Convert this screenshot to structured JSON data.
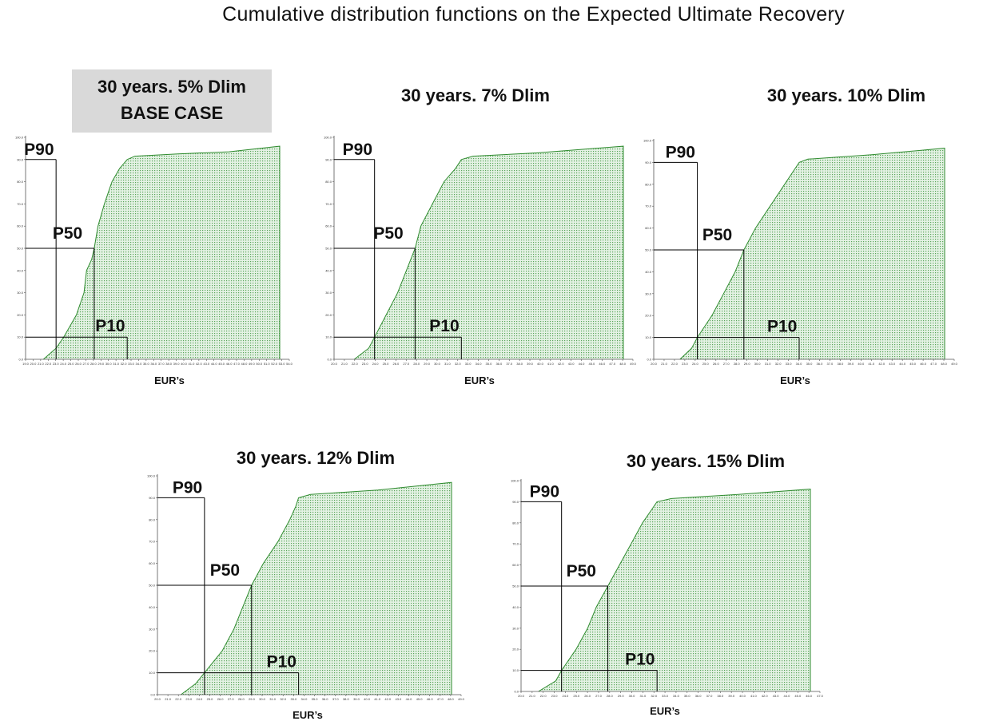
{
  "title": "Cumulative distribution functions on the Expected Ultimate Recovery",
  "colors": {
    "fill": "#cfe8cf",
    "curve": "#2e8b2e",
    "lines": "#000000",
    "highlight_box": "#d9d9d9"
  },
  "chart_data": [
    {
      "type": "area",
      "title_lines": [
        "30 years. 5% Dlim",
        "BASE CASE"
      ],
      "xlabel": "EUR’s",
      "ylabel": "",
      "ylim": [
        0,
        100
      ],
      "y_ticks": [
        "0.0",
        "10.0",
        "20.0",
        "30.0",
        "40.0",
        "50.0",
        "60.0",
        "70.0",
        "80.0",
        "90.0",
        "100.0"
      ],
      "x_ticks": [
        "19.0",
        "20.0",
        "21.0",
        "22.0",
        "23.0",
        "24.0",
        "25.0",
        "26.0",
        "27.0",
        "28.0",
        "29.0",
        "30.0",
        "31.0",
        "32.0",
        "33.0",
        "34.0",
        "35.0",
        "36.0",
        "37.0",
        "38.0",
        "39.0",
        "40.0",
        "41.0",
        "42.0",
        "43.0",
        "44.0",
        "45.0",
        "46.0",
        "47.0",
        "48.0",
        "49.0",
        "50.0",
        "51.0",
        "52.0",
        "53.0",
        "54.0"
      ],
      "curve": [
        [
          0.07,
          0
        ],
        [
          0.12,
          5
        ],
        [
          0.15,
          10
        ],
        [
          0.2,
          20
        ],
        [
          0.23,
          30
        ],
        [
          0.24,
          40
        ],
        [
          0.26,
          45
        ],
        [
          0.27,
          50
        ],
        [
          0.285,
          60
        ],
        [
          0.31,
          70
        ],
        [
          0.34,
          80
        ],
        [
          0.37,
          86
        ],
        [
          0.4,
          90
        ],
        [
          0.43,
          91.5
        ],
        [
          0.6,
          92.5
        ],
        [
          0.8,
          93.5
        ],
        [
          1,
          96
        ]
      ],
      "markers": [
        {
          "label": "P90",
          "percentile": 10,
          "x": 0.12
        },
        {
          "label": "P50",
          "percentile": 50,
          "x": 0.27
        },
        {
          "label": "P10",
          "percentile": 90,
          "x": 0.4
        }
      ]
    },
    {
      "type": "area",
      "title_lines": [
        "30 years. 7% Dlim"
      ],
      "xlabel": "EUR’s",
      "ylabel": "",
      "ylim": [
        0,
        100
      ],
      "y_ticks": [
        "0.0",
        "10.0",
        "20.0",
        "30.0",
        "40.0",
        "50.0",
        "60.0",
        "70.0",
        "80.0",
        "90.0",
        "100.0"
      ],
      "x_ticks": [
        "20.0",
        "21.0",
        "22.0",
        "23.0",
        "24.0",
        "25.0",
        "26.0",
        "27.0",
        "28.0",
        "29.0",
        "30.0",
        "31.0",
        "32.0",
        "33.0",
        "34.0",
        "35.0",
        "36.0",
        "37.0",
        "38.0",
        "39.0",
        "40.0",
        "41.0",
        "42.0",
        "43.0",
        "44.0",
        "45.0",
        "46.0",
        "47.0",
        "48.0",
        "49.0"
      ],
      "curve": [
        [
          0.07,
          0
        ],
        [
          0.12,
          5
        ],
        [
          0.14,
          10
        ],
        [
          0.18,
          20
        ],
        [
          0.22,
          30
        ],
        [
          0.25,
          40
        ],
        [
          0.28,
          50
        ],
        [
          0.3,
          60
        ],
        [
          0.34,
          70
        ],
        [
          0.38,
          80
        ],
        [
          0.42,
          86
        ],
        [
          0.44,
          90
        ],
        [
          0.48,
          91.5
        ],
        [
          0.7,
          93
        ],
        [
          1,
          96
        ]
      ],
      "markers": [
        {
          "label": "P90",
          "percentile": 10,
          "x": 0.14
        },
        {
          "label": "P50",
          "percentile": 50,
          "x": 0.28
        },
        {
          "label": "P10",
          "percentile": 90,
          "x": 0.44
        }
      ]
    },
    {
      "type": "area",
      "title_lines": [
        "30 years. 10% Dlim"
      ],
      "xlabel": "EUR’s",
      "ylabel": "",
      "ylim": [
        0,
        100
      ],
      "y_ticks": [
        "0.0",
        "10.0",
        "20.0",
        "30.0",
        "40.0",
        "50.0",
        "60.0",
        "70.0",
        "80.0",
        "90.0",
        "100.0"
      ],
      "x_ticks": [
        "20.0",
        "21.0",
        "22.0",
        "23.0",
        "24.0",
        "25.0",
        "26.0",
        "27.0",
        "28.0",
        "29.0",
        "30.0",
        "31.0",
        "32.0",
        "33.0",
        "34.0",
        "35.0",
        "36.0",
        "37.0",
        "38.0",
        "39.0",
        "40.0",
        "41.0",
        "42.0",
        "43.0",
        "44.0",
        "45.0",
        "46.0",
        "47.0",
        "48.0",
        "49.0"
      ],
      "curve": [
        [
          0.09,
          0
        ],
        [
          0.13,
          5
        ],
        [
          0.15,
          10
        ],
        [
          0.2,
          20
        ],
        [
          0.24,
          30
        ],
        [
          0.28,
          40
        ],
        [
          0.31,
          50
        ],
        [
          0.35,
          60
        ],
        [
          0.4,
          70
        ],
        [
          0.45,
          80
        ],
        [
          0.48,
          86
        ],
        [
          0.5,
          90
        ],
        [
          0.53,
          91.5
        ],
        [
          0.75,
          93.5
        ],
        [
          1,
          96.5
        ]
      ],
      "markers": [
        {
          "label": "P90",
          "percentile": 10,
          "x": 0.15
        },
        {
          "label": "P50",
          "percentile": 50,
          "x": 0.31
        },
        {
          "label": "P10",
          "percentile": 90,
          "x": 0.5
        }
      ]
    },
    {
      "type": "area",
      "title_lines": [
        "30 years. 12% Dlim"
      ],
      "xlabel": "EUR’s",
      "ylabel": "",
      "ylim": [
        0,
        100
      ],
      "y_ticks": [
        "0.0",
        "10.0",
        "20.0",
        "30.0",
        "40.0",
        "50.0",
        "60.0",
        "70.0",
        "80.0",
        "90.0",
        "100.0"
      ],
      "x_ticks": [
        "20.0",
        "21.0",
        "22.0",
        "23.0",
        "24.0",
        "25.0",
        "26.0",
        "27.0",
        "28.0",
        "29.0",
        "30.0",
        "31.0",
        "32.0",
        "33.0",
        "34.0",
        "35.0",
        "36.0",
        "37.0",
        "38.0",
        "39.0",
        "40.0",
        "41.0",
        "42.0",
        "43.0",
        "44.0",
        "45.0",
        "46.0",
        "47.0",
        "48.0",
        "49.0"
      ],
      "curve": [
        [
          0.08,
          0
        ],
        [
          0.13,
          5
        ],
        [
          0.16,
          10
        ],
        [
          0.22,
          20
        ],
        [
          0.26,
          30
        ],
        [
          0.29,
          40
        ],
        [
          0.32,
          50
        ],
        [
          0.36,
          60
        ],
        [
          0.41,
          70
        ],
        [
          0.45,
          80
        ],
        [
          0.47,
          86
        ],
        [
          0.48,
          90
        ],
        [
          0.52,
          91.5
        ],
        [
          0.75,
          93.5
        ],
        [
          1,
          97
        ]
      ],
      "markers": [
        {
          "label": "P90",
          "percentile": 10,
          "x": 0.16
        },
        {
          "label": "P50",
          "percentile": 50,
          "x": 0.32
        },
        {
          "label": "P10",
          "percentile": 90,
          "x": 0.48
        }
      ]
    },
    {
      "type": "area",
      "title_lines": [
        "30 years. 15% Dlim"
      ],
      "xlabel": "EUR’s",
      "ylabel": "",
      "ylim": [
        0,
        100
      ],
      "y_ticks": [
        "0.0",
        "10.0",
        "20.0",
        "30.0",
        "40.0",
        "50.0",
        "60.0",
        "70.0",
        "80.0",
        "90.0",
        "100.0"
      ],
      "x_ticks": [
        "20.0",
        "21.0",
        "22.0",
        "23.0",
        "24.0",
        "25.0",
        "26.0",
        "27.0",
        "28.0",
        "29.0",
        "30.0",
        "31.0",
        "32.0",
        "33.0",
        "34.0",
        "35.0",
        "36.0",
        "37.0",
        "38.0",
        "39.0",
        "40.0",
        "41.0",
        "42.0",
        "43.0",
        "44.0",
        "45.0",
        "46.0",
        "47.0"
      ],
      "curve": [
        [
          0.06,
          0
        ],
        [
          0.12,
          5
        ],
        [
          0.14,
          10
        ],
        [
          0.19,
          20
        ],
        [
          0.23,
          30
        ],
        [
          0.26,
          40
        ],
        [
          0.3,
          50
        ],
        [
          0.34,
          60
        ],
        [
          0.38,
          70
        ],
        [
          0.42,
          80
        ],
        [
          0.45,
          86
        ],
        [
          0.47,
          90
        ],
        [
          0.52,
          91.5
        ],
        [
          0.75,
          93.5
        ],
        [
          1,
          96
        ]
      ],
      "markers": [
        {
          "label": "P90",
          "percentile": 10,
          "x": 0.14
        },
        {
          "label": "P50",
          "percentile": 50,
          "x": 0.3
        },
        {
          "label": "P10",
          "percentile": 90,
          "x": 0.47
        }
      ]
    }
  ]
}
